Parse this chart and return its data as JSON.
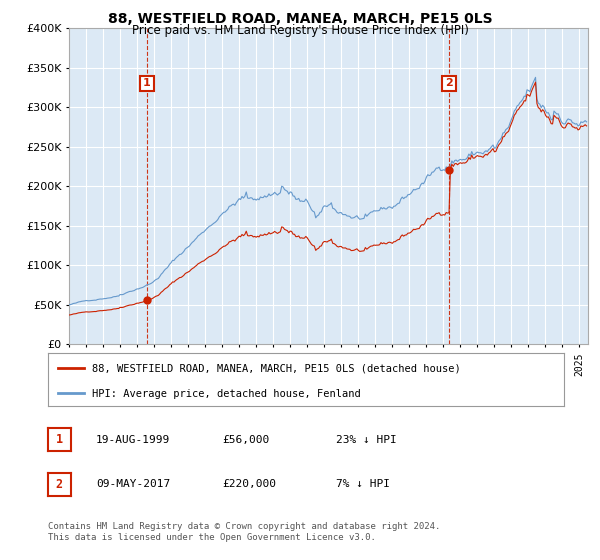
{
  "title": "88, WESTFIELD ROAD, MANEA, MARCH, PE15 0LS",
  "subtitle": "Price paid vs. HM Land Registry's House Price Index (HPI)",
  "sale1_date": "19-AUG-1999",
  "sale1_price": 56000,
  "sale2_date": "09-MAY-2017",
  "sale2_price": 220000,
  "legend1": "88, WESTFIELD ROAD, MANEA, MARCH, PE15 0LS (detached house)",
  "legend2": "HPI: Average price, detached house, Fenland",
  "footnote1": "Contains HM Land Registry data © Crown copyright and database right 2024.",
  "footnote2": "This data is licensed under the Open Government Licence v3.0.",
  "table_row1": [
    "1",
    "19-AUG-1999",
    "£56,000",
    "23% ↓ HPI"
  ],
  "table_row2": [
    "2",
    "09-MAY-2017",
    "£220,000",
    "7% ↓ HPI"
  ],
  "hpi_line_color": "#6699cc",
  "property_line_color": "#cc2200",
  "annotation_box_color": "#cc2200",
  "plot_bg_color": "#dce9f5",
  "ylim": [
    0,
    400000
  ],
  "yticks": [
    0,
    50000,
    100000,
    150000,
    200000,
    250000,
    300000,
    350000,
    400000
  ],
  "xlim_start": 1995.0,
  "xlim_end": 2025.5,
  "bg_color": "#ffffff",
  "grid_color": "#ffffff"
}
